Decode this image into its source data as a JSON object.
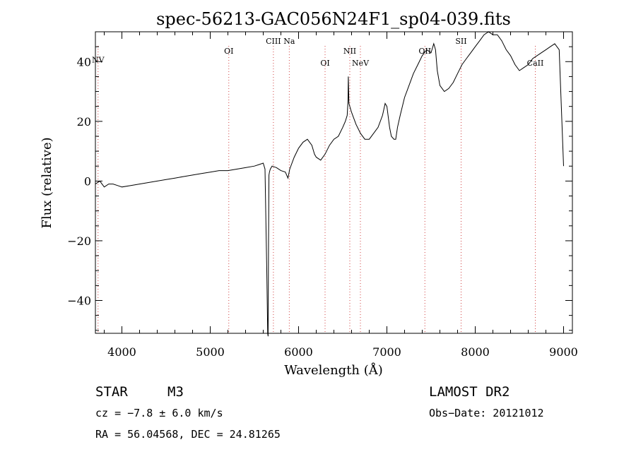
{
  "chart_data": {
    "type": "line",
    "title": "spec-56213-GAC056N24F1_sp04-039.fits",
    "xlabel": "Wavelength (Å)",
    "ylabel": "Flux (relative)",
    "xlim": [
      3700,
      9100
    ],
    "ylim": [
      -51,
      50
    ],
    "xticks": [
      4000,
      5000,
      6000,
      7000,
      8000,
      9000
    ],
    "yticks": [
      -40,
      -20,
      0,
      20,
      40
    ],
    "ytick_labels": [
      "−40",
      "−20",
      "0",
      "20",
      "40"
    ],
    "grid": false,
    "line_color": "#000000",
    "marker_color": "#d04040",
    "series": [
      {
        "x": [
          3700,
          3750,
          3800,
          3850,
          3900,
          3950,
          4000,
          4100,
          4200,
          4300,
          4400,
          4500,
          4600,
          4700,
          4800,
          4900,
          5000,
          5100,
          5200,
          5300,
          5400,
          5500,
          5550,
          5600,
          5620,
          5640,
          5650,
          5655,
          5660,
          5665,
          5670,
          5680,
          5700,
          5750,
          5800,
          5850,
          5880,
          5900,
          5950,
          6000,
          6050,
          6100,
          6150,
          6180,
          6200,
          6250,
          6300,
          6350,
          6400,
          6450,
          6500,
          6530,
          6550,
          6560,
          6563,
          6570,
          6580,
          6600,
          6650,
          6700,
          6750,
          6800,
          6850,
          6900,
          6950,
          6980,
          7000,
          7030,
          7050,
          7080,
          7100,
          7120,
          7150,
          7200,
          7250,
          7300,
          7350,
          7400,
          7450,
          7500,
          7530,
          7550,
          7570,
          7600,
          7650,
          7700,
          7750,
          7800,
          7850,
          7900,
          7950,
          8000,
          8050,
          8100,
          8150,
          8200,
          8250,
          8300,
          8350,
          8400,
          8450,
          8500,
          8550,
          8600,
          8650,
          8700,
          8750,
          8800,
          8850,
          8900,
          8950,
          9000
        ],
        "values": [
          -1,
          0,
          -2,
          -1,
          -1,
          -1.5,
          -2,
          -1.5,
          -1,
          -0.5,
          0,
          0.5,
          1,
          1.5,
          2,
          2.5,
          3,
          3.5,
          3.5,
          4,
          4.5,
          5,
          5.5,
          6,
          4,
          -30,
          -51,
          -52,
          -20,
          2,
          3,
          4,
          5,
          4.5,
          3.5,
          3,
          1,
          4,
          8,
          11,
          13,
          14,
          12,
          9,
          8,
          7,
          9,
          12,
          14,
          15,
          18,
          20,
          22,
          27,
          35,
          26,
          25,
          23,
          19,
          16,
          14,
          14,
          16,
          18,
          22,
          26,
          25,
          18,
          15,
          14,
          14,
          18,
          22,
          28,
          32,
          36,
          39,
          42,
          44,
          43,
          46,
          44,
          37,
          32,
          30,
          31,
          33,
          36,
          39,
          41,
          43,
          45,
          47,
          49,
          50,
          49,
          49,
          47,
          44,
          42,
          39,
          37,
          38,
          39,
          41,
          42,
          43,
          44,
          45,
          46,
          44,
          5
        ]
      }
    ],
    "line_markers": [
      {
        "wavelength": 3730,
        "label": "NV",
        "label_y": 39.7
      },
      {
        "wavelength": 5210,
        "label": "OI",
        "label_y": 42.7
      },
      {
        "wavelength": 5715,
        "label": "CIII",
        "label_y": 46
      },
      {
        "wavelength": 5895,
        "label": "Na",
        "label_y": 46
      },
      {
        "wavelength": 6300,
        "label": "OI",
        "label_y": 38.7
      },
      {
        "wavelength": 6580,
        "label": "NII",
        "label_y": 42.7
      },
      {
        "wavelength": 6700,
        "label": "NeV",
        "label_y": 38.7
      },
      {
        "wavelength": 7430,
        "label": "OII",
        "label_y": 42.7
      },
      {
        "wavelength": 7840,
        "label": "SII",
        "label_y": 46
      },
      {
        "wavelength": 8680,
        "label": "CaII",
        "label_y": 38.7
      }
    ]
  },
  "info": {
    "object_class": "STAR",
    "subclass": "M3",
    "survey": "LAMOST DR2",
    "cz_line": "cz = −7.8 ± 6.0 km/s",
    "obs_date": "Obs−Date: 20121012",
    "coords": "RA =  56.04568, DEC =  24.81265"
  }
}
